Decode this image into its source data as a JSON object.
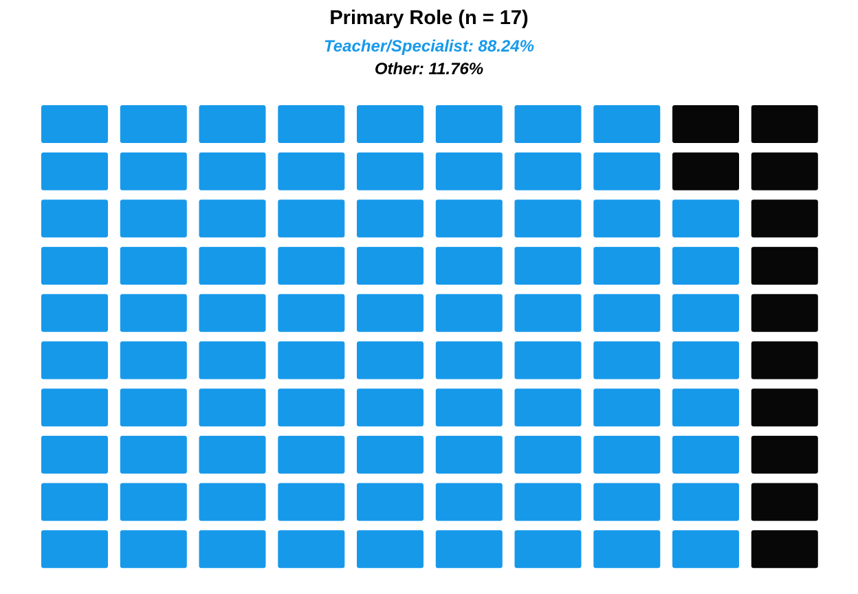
{
  "chart_data": {
    "type": "waffle",
    "title": "Primary Role (n = 17)",
    "legend": [
      {
        "label": "Teacher/Specialist: 88.24%",
        "percent": 88.24,
        "color": "#1799EA"
      },
      {
        "label": "Other: 11.76%",
        "percent": 11.76,
        "color": "#070707"
      }
    ],
    "grid": {
      "rows": 10,
      "columns": 10
    },
    "categories": [
      "Teacher/Specialist",
      "Other"
    ],
    "values": [
      88,
      12
    ],
    "fill_order": "column-major, right column filled from bottom first",
    "colors": [
      "#1799EA",
      "#070707"
    ]
  }
}
